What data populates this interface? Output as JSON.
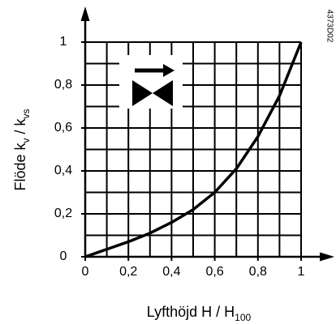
{
  "chart_data": {
    "type": "line",
    "xlabel": [
      "Lyfthöjd H / H",
      "100"
    ],
    "ylabel": [
      "Flöde k",
      "v",
      " / k",
      "vs"
    ],
    "code": "4373D02",
    "x": [
      0,
      0.1,
      0.2,
      0.3,
      0.4,
      0.5,
      0.6,
      0.7,
      0.8,
      0.9,
      1
    ],
    "series": [
      {
        "color": "#000000",
        "values": [
          0,
          0.035,
          0.07,
          0.11,
          0.16,
          0.22,
          0.3,
          0.41,
          0.56,
          0.75,
          1
        ]
      }
    ],
    "xlim": [
      0,
      1
    ],
    "ylim": [
      0,
      1
    ],
    "xticks": [
      0,
      {
        "value": 0.2,
        "label": "0,2"
      },
      {
        "value": 0.4,
        "label": "0,4"
      },
      {
        "value": 0.6,
        "label": "0,6"
      },
      {
        "value": 0.8,
        "label": "0,8"
      },
      1
    ],
    "yticks": [
      0,
      {
        "value": 0.2,
        "label": "0,2"
      },
      {
        "value": 0.4,
        "label": "0,4"
      },
      {
        "value": 0.6,
        "label": "0,6"
      },
      {
        "value": 0.8,
        "label": "0,8"
      },
      1
    ],
    "xgrid": [
      0.1,
      0.2,
      0.3,
      0.4,
      0.5,
      0.6,
      0.7,
      0.8,
      0.9,
      1
    ],
    "ygrid": [
      0.1,
      0.2,
      0.3,
      0.4,
      0.5,
      0.6,
      0.7,
      0.8,
      0.9,
      1
    ]
  }
}
